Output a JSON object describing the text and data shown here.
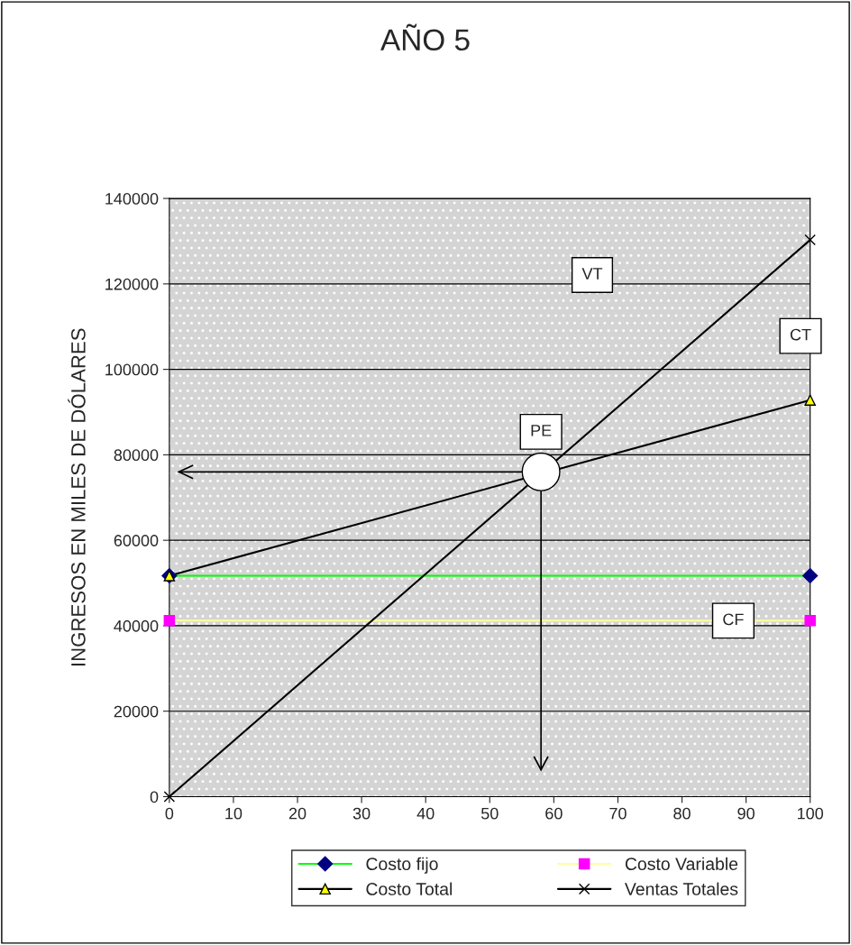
{
  "chart_data": {
    "type": "line",
    "title": "AÑO 5",
    "ylabel": "INGRESOS EN MILES DE DÓLARES",
    "x": [
      0,
      100
    ],
    "series": [
      {
        "name": "Costo fijo",
        "color": "#00ff00",
        "colors": [
          "#000080",
          "#000080"
        ],
        "marker": "diamond",
        "values": [
          51700,
          51700
        ]
      },
      {
        "name": "Costo Variable",
        "color": "#ffff99",
        "colors": [
          "#ff00ff",
          "#ff00ff"
        ],
        "marker": "square",
        "values": [
          41200,
          41200
        ]
      },
      {
        "name": "Costo Total",
        "color": "#000000",
        "colors": [
          "#ffff00",
          "#ffff00"
        ],
        "marker": "triangle",
        "values": [
          51700,
          92800
        ]
      },
      {
        "name": "Ventas Totales",
        "color": "#000000",
        "colors": [
          "#000000",
          "#000000"
        ],
        "marker": "cross",
        "values": [
          0,
          130300
        ]
      },
      {
        "type": "scatter",
        "x": [
          58
        ],
        "color": "#000000",
        "colors": [
          "#ffffff"
        ],
        "marker": "circle",
        "values": [
          76000
        ]
      }
    ],
    "annotations": [
      "VT",
      "CT",
      {
        "text": "PE",
        "x": 58,
        "y": 76000
      },
      "CF"
    ],
    "xlim": [
      0,
      100
    ],
    "xticks": [
      0,
      10,
      20,
      30,
      40,
      50,
      60,
      70,
      80,
      90,
      100
    ],
    "ylim": [
      0,
      140000
    ],
    "yticks": [
      0,
      20000,
      40000,
      60000,
      80000,
      100000,
      120000,
      140000
    ],
    "ref_lines": [
      {
        "axis": "y",
        "value": 76000,
        "color": "#000000"
      },
      {
        "axis": "x",
        "value": 58,
        "color": "#000000"
      }
    ],
    "grid": "y",
    "legend": "bottom"
  }
}
